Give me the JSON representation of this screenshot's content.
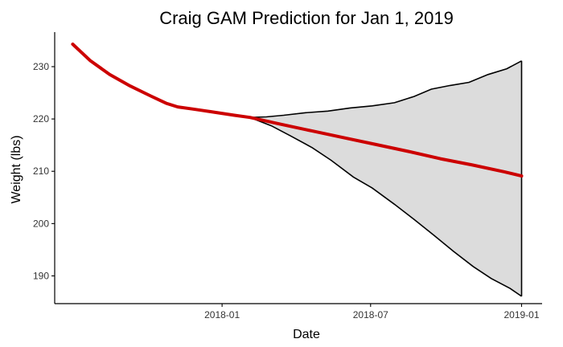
{
  "chart_data": {
    "type": "line",
    "title": "Craig GAM Prediction for Jan 1, 2019",
    "xlabel": "Date",
    "ylabel": "Weight (lbs)",
    "x_ticks": [
      "2018-01",
      "2018-07",
      "2019-01"
    ],
    "y_ticks": [
      190,
      200,
      210,
      220,
      230
    ],
    "xlim": [
      "2017-06-11",
      "2019-01-26"
    ],
    "ylim": [
      184.7,
      236.6
    ],
    "grid": false,
    "legend": "none",
    "colors": {
      "fit_line": "#cc0000",
      "band_fill": "#dcdcdc",
      "band_edge": "#000000",
      "axis": "#000000"
    },
    "series": [
      {
        "values": [
          {
            "x": "2017-07-03",
            "y": 234.3
          },
          {
            "x": "2017-07-24",
            "y": 231.2
          },
          {
            "x": "2017-08-17",
            "y": 228.5
          },
          {
            "x": "2017-09-11",
            "y": 226.3
          },
          {
            "x": "2017-10-06",
            "y": 224.4
          },
          {
            "x": "2017-10-25",
            "y": 223.0
          },
          {
            "x": "2017-11-08",
            "y": 222.3
          },
          {
            "x": "2017-11-26",
            "y": 221.9
          },
          {
            "x": "2017-12-18",
            "y": 221.4
          },
          {
            "x": "2018-01-16",
            "y": 220.7
          },
          {
            "x": "2018-02-04",
            "y": 220.3
          },
          {
            "x": "2018-03-13",
            "y": 219.0
          },
          {
            "x": "2018-04-21",
            "y": 217.7
          },
          {
            "x": "2018-05-30",
            "y": 216.4
          },
          {
            "x": "2018-07-08",
            "y": 215.1
          },
          {
            "x": "2018-08-16",
            "y": 213.8
          },
          {
            "x": "2018-09-24",
            "y": 212.4
          },
          {
            "x": "2018-11-02",
            "y": 211.2
          },
          {
            "x": "2018-12-11",
            "y": 209.9
          },
          {
            "x": "2019-01-01",
            "y": 209.1
          }
        ]
      }
    ],
    "interval_upper": [
      {
        "x": "2018-02-04",
        "y": 220.3
      },
      {
        "x": "2018-02-24",
        "y": 220.4
      },
      {
        "x": "2018-03-17",
        "y": 220.7
      },
      {
        "x": "2018-04-13",
        "y": 221.2
      },
      {
        "x": "2018-05-10",
        "y": 221.5
      },
      {
        "x": "2018-06-06",
        "y": 222.1
      },
      {
        "x": "2018-07-03",
        "y": 222.5
      },
      {
        "x": "2018-07-30",
        "y": 223.1
      },
      {
        "x": "2018-08-23",
        "y": 224.3
      },
      {
        "x": "2018-09-13",
        "y": 225.7
      },
      {
        "x": "2018-10-06",
        "y": 226.4
      },
      {
        "x": "2018-10-29",
        "y": 227.0
      },
      {
        "x": "2018-11-21",
        "y": 228.5
      },
      {
        "x": "2018-12-14",
        "y": 229.6
      },
      {
        "x": "2019-01-01",
        "y": 231.1
      }
    ],
    "interval_lower": [
      {
        "x": "2018-02-04",
        "y": 220.3
      },
      {
        "x": "2018-03-02",
        "y": 218.7
      },
      {
        "x": "2018-03-25",
        "y": 216.8
      },
      {
        "x": "2018-04-21",
        "y": 214.5
      },
      {
        "x": "2018-05-14",
        "y": 212.1
      },
      {
        "x": "2018-06-10",
        "y": 208.9
      },
      {
        "x": "2018-07-03",
        "y": 206.8
      },
      {
        "x": "2018-07-30",
        "y": 203.7
      },
      {
        "x": "2018-08-23",
        "y": 200.8
      },
      {
        "x": "2018-09-16",
        "y": 197.8
      },
      {
        "x": "2018-10-10",
        "y": 194.7
      },
      {
        "x": "2018-11-03",
        "y": 191.8
      },
      {
        "x": "2018-11-25",
        "y": 189.5
      },
      {
        "x": "2018-12-18",
        "y": 187.6
      },
      {
        "x": "2019-01-01",
        "y": 186.1
      }
    ]
  }
}
